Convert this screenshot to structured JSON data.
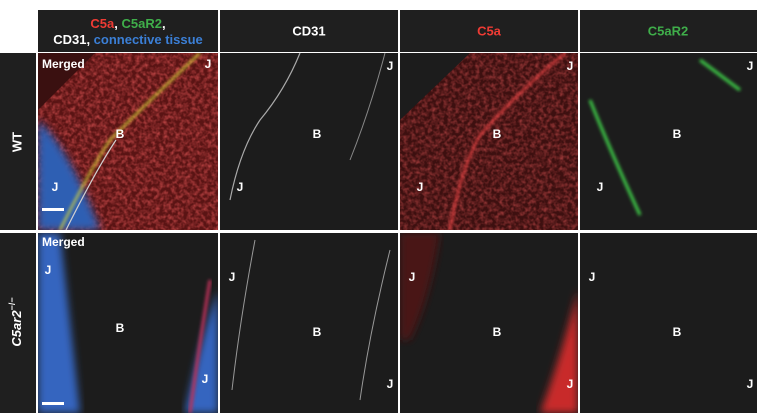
{
  "header": {
    "merged_parts": [
      {
        "text": "C5a",
        "color": "#ee3b34"
      },
      {
        "text": ", ",
        "color": "#ffffff"
      },
      {
        "text": "C5aR2",
        "color": "#3fae4a"
      },
      {
        "text": ",",
        "color": "#ffffff"
      }
    ],
    "merged_parts_line2": [
      {
        "text": "CD31, ",
        "color": "#ffffff"
      },
      {
        "text": "connective tissue",
        "color": "#3b7fd6"
      }
    ],
    "columns": [
      {
        "text": "CD31",
        "color": "#ffffff"
      },
      {
        "text": "C5a",
        "color": "#ee3b34"
      },
      {
        "text": "C5aR2",
        "color": "#3fae4a"
      }
    ]
  },
  "rows": [
    {
      "label": "WT",
      "panels": [
        [
          "Merged",
          "J",
          "B",
          "J"
        ],
        [
          "J",
          "B",
          "J"
        ],
        [
          "J",
          "B",
          "J"
        ],
        [
          "J",
          "B",
          "J"
        ]
      ]
    },
    {
      "label": "C5ar2",
      "label_sup": "−/−",
      "panels": [
        [
          "Merged",
          "J",
          "B",
          "J"
        ],
        [
          "J",
          "B",
          "J"
        ],
        [
          "J",
          "B",
          "J"
        ],
        [
          "J",
          "B",
          "J"
        ]
      ]
    }
  ]
}
